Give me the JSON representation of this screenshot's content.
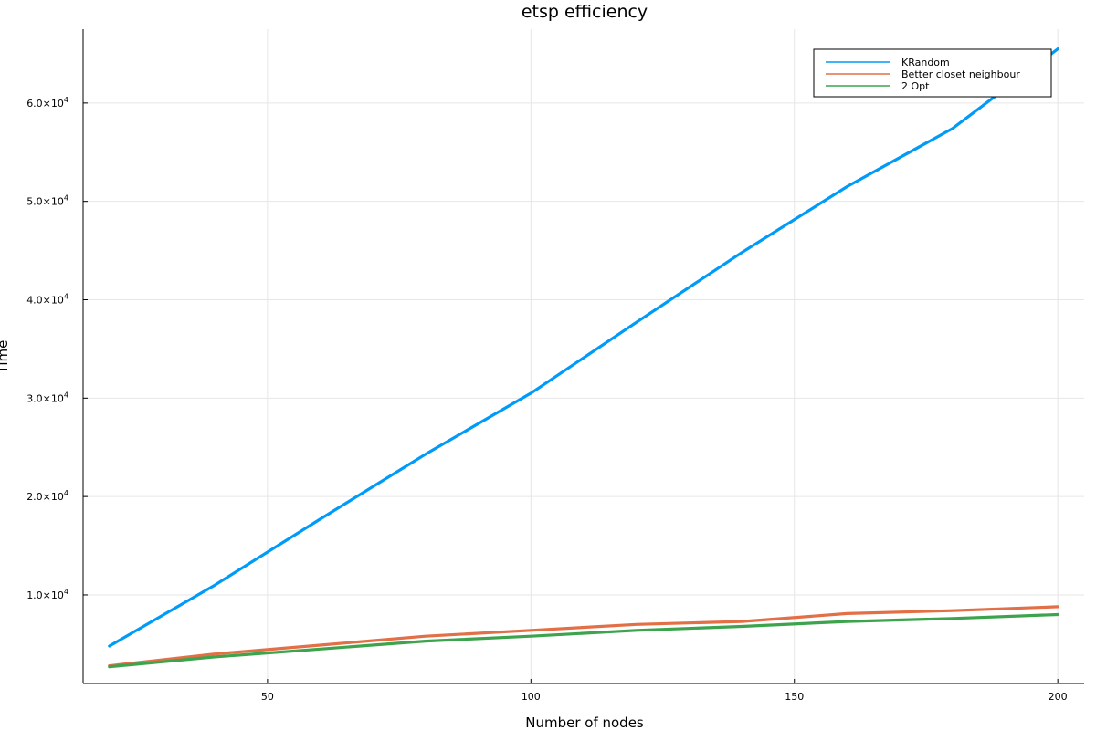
{
  "chart_data": {
    "type": "line",
    "title": "etsp efficiency",
    "xlabel": "Number of nodes",
    "ylabel": "Time",
    "xlim": [
      15,
      205
    ],
    "ylim": [
      1000,
      67500
    ],
    "x_ticks": [
      {
        "value": 50,
        "label": "50"
      },
      {
        "value": 100,
        "label": "100"
      },
      {
        "value": 150,
        "label": "150"
      },
      {
        "value": 200,
        "label": "200"
      }
    ],
    "y_ticks": [
      {
        "value": 10000,
        "base": "1.0×10",
        "exp": "4"
      },
      {
        "value": 20000,
        "base": "2.0×10",
        "exp": "4"
      },
      {
        "value": 30000,
        "base": "3.0×10",
        "exp": "4"
      },
      {
        "value": 40000,
        "base": "4.0×10",
        "exp": "4"
      },
      {
        "value": 50000,
        "base": "5.0×10",
        "exp": "4"
      },
      {
        "value": 60000,
        "base": "6.0×10",
        "exp": "4"
      }
    ],
    "legend_position": "top-right",
    "grid": true,
    "x": [
      20,
      40,
      60,
      80,
      100,
      120,
      140,
      160,
      180,
      200
    ],
    "series": [
      {
        "name": "KRandom",
        "color": "#009af9",
        "values": [
          4800,
          11000,
          17700,
          24300,
          30500,
          37700,
          44800,
          51500,
          57400,
          65500
        ]
      },
      {
        "name": "Better closet neighbour",
        "color": "#e26f46",
        "values": [
          2800,
          4000,
          4900,
          5800,
          6400,
          7000,
          7300,
          8100,
          8400,
          8800
        ]
      },
      {
        "name": "2 Opt",
        "color": "#3da44d",
        "values": [
          2700,
          3700,
          4500,
          5300,
          5800,
          6400,
          6800,
          7300,
          7600,
          8000
        ]
      }
    ]
  }
}
